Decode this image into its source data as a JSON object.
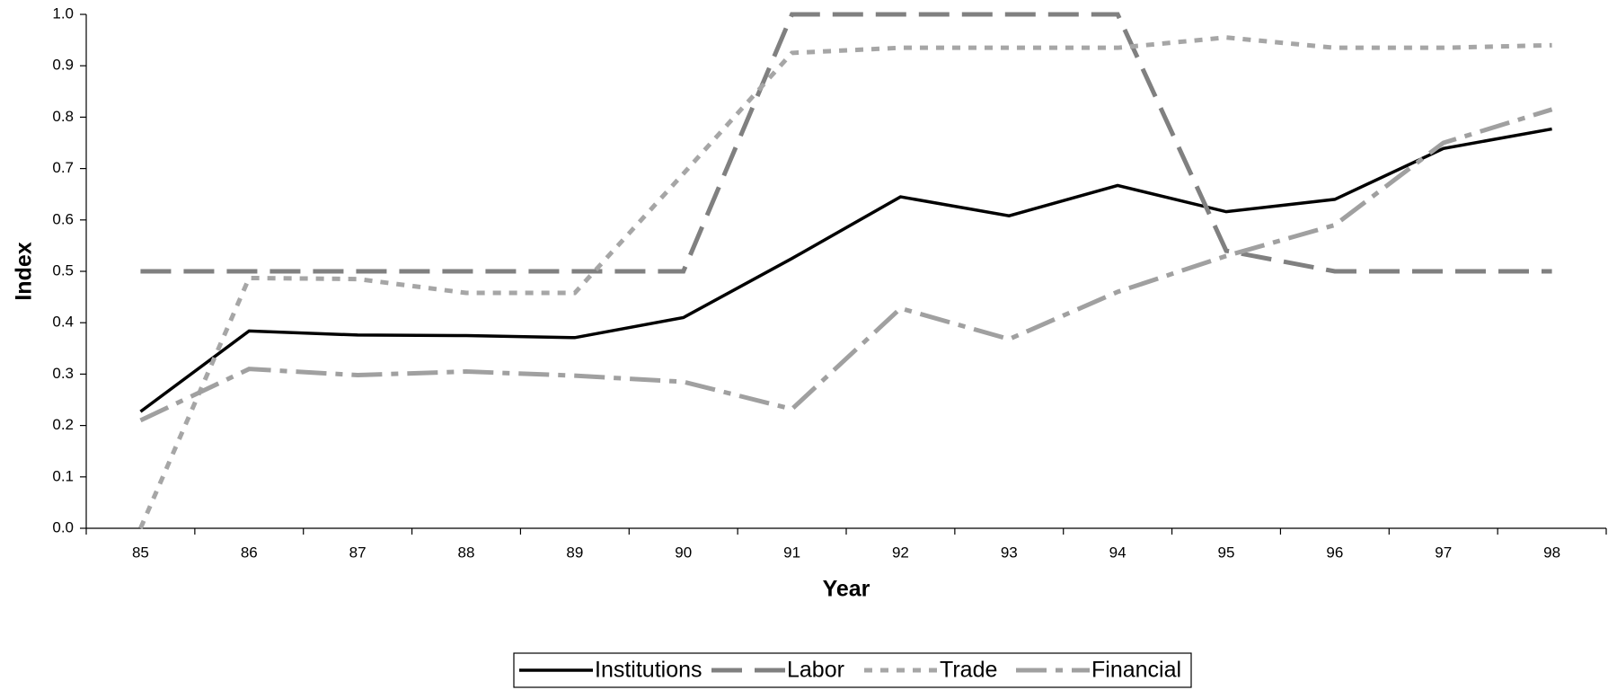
{
  "chart_data": {
    "type": "line",
    "x_label": "Year",
    "y_label": "Index",
    "categories": [
      "85",
      "86",
      "87",
      "88",
      "89",
      "90",
      "91",
      "92",
      "93",
      "94",
      "95",
      "96",
      "97",
      "98"
    ],
    "series": [
      {
        "name": "Institutions",
        "color": "#000000",
        "dash": "none",
        "values": [
          0.227,
          0.384,
          0.376,
          0.375,
          0.371,
          0.41,
          0.525,
          0.645,
          0.608,
          0.667,
          0.616,
          0.64,
          0.739,
          0.777
        ]
      },
      {
        "name": "Labor",
        "color": "#808080",
        "dash": "34,14",
        "values": [
          0.5,
          0.5,
          0.5,
          0.5,
          0.5,
          0.5,
          1.0,
          1.0,
          1.0,
          1.0,
          0.54,
          0.5,
          0.5,
          0.5
        ]
      },
      {
        "name": "Trade",
        "color": "#a6a6a6",
        "dash": "9,9",
        "values": [
          0.0,
          0.487,
          0.485,
          0.458,
          0.458,
          0.69,
          0.925,
          0.935,
          0.935,
          0.935,
          0.955,
          0.935,
          0.935,
          0.94
        ]
      },
      {
        "name": "Financial",
        "color": "#a0a0a0",
        "dash": "34,10,8,10",
        "values": [
          0.21,
          0.31,
          0.298,
          0.305,
          0.297,
          0.285,
          0.232,
          0.428,
          0.368,
          0.46,
          0.53,
          0.59,
          0.75,
          0.815
        ]
      }
    ],
    "ylim": [
      0,
      1
    ],
    "yticks": [
      {
        "value": 0,
        "label": "0.0"
      },
      0.1,
      0.2,
      0.3,
      0.4,
      0.5,
      0.6,
      0.7,
      0.8,
      0.9,
      {
        "value": 1,
        "label": "1.0"
      }
    ],
    "grid": false,
    "legend": "bottom"
  }
}
